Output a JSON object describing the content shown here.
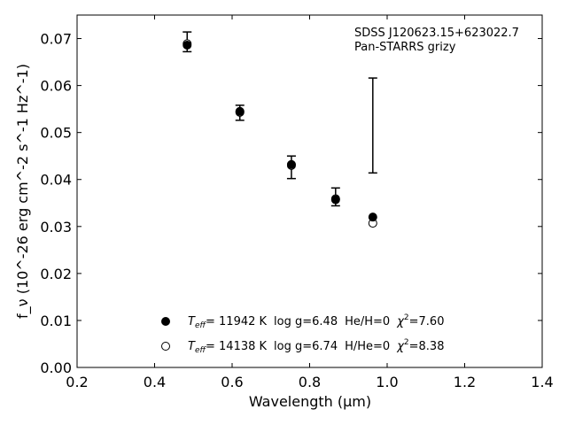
{
  "chart_data": {
    "type": "scatter",
    "title": "",
    "annotation": {
      "line1": "SDSS J120623.15+623022.7",
      "line2": "Pan-STARRS grizy"
    },
    "xlabel": "Wavelength (μm)",
    "ylabel": "f_ν (10^-26 erg cm^-2 s^-1 Hz^-1)",
    "xlim": [
      0.2,
      1.4
    ],
    "ylim": [
      0.0,
      0.075
    ],
    "xticks": [
      "0.2",
      "0.4",
      "0.6",
      "0.8",
      "1.0",
      "1.2",
      "1.4"
    ],
    "yticks": [
      "0.00",
      "0.01",
      "0.02",
      "0.03",
      "0.04",
      "0.05",
      "0.06",
      "0.07"
    ],
    "observed": {
      "x": [
        0.484,
        0.62,
        0.753,
        0.867,
        0.963
      ],
      "y": [
        0.0693,
        0.0542,
        0.0426,
        0.0363,
        0.0515
      ],
      "err": [
        0.0021,
        0.0016,
        0.0024,
        0.0019,
        0.0101
      ]
    },
    "series": [
      {
        "name": "He/H",
        "marker": "filled-circle",
        "label": {
          "teff_prefix": "T",
          "teff_sub": "eff",
          "teff_value": "= 11942 K",
          "logg": "log g=6.48",
          "comp": "He/H=0",
          "chi": "χ",
          "chi_sup": "2",
          "chi_value": "=7.60"
        },
        "x": [
          0.484,
          0.62,
          0.753,
          0.867,
          0.963
        ],
        "y": [
          0.0686,
          0.0545,
          0.0432,
          0.0357,
          0.032
        ]
      },
      {
        "name": "H/He",
        "marker": "open-circle",
        "label": {
          "teff_prefix": "T",
          "teff_sub": "eff",
          "teff_value": "= 14138 K",
          "logg": "log g=6.74",
          "comp": "H/He=0",
          "chi": "χ",
          "chi_sup": "2",
          "chi_value": "=8.38"
        },
        "x": [
          0.484,
          0.62,
          0.753,
          0.867,
          0.963
        ],
        "y": [
          0.0689,
          0.0543,
          0.043,
          0.0359,
          0.0307
        ]
      }
    ],
    "colors": {
      "axis": "#000000",
      "marker": "#000000",
      "background": "#ffffff"
    }
  }
}
